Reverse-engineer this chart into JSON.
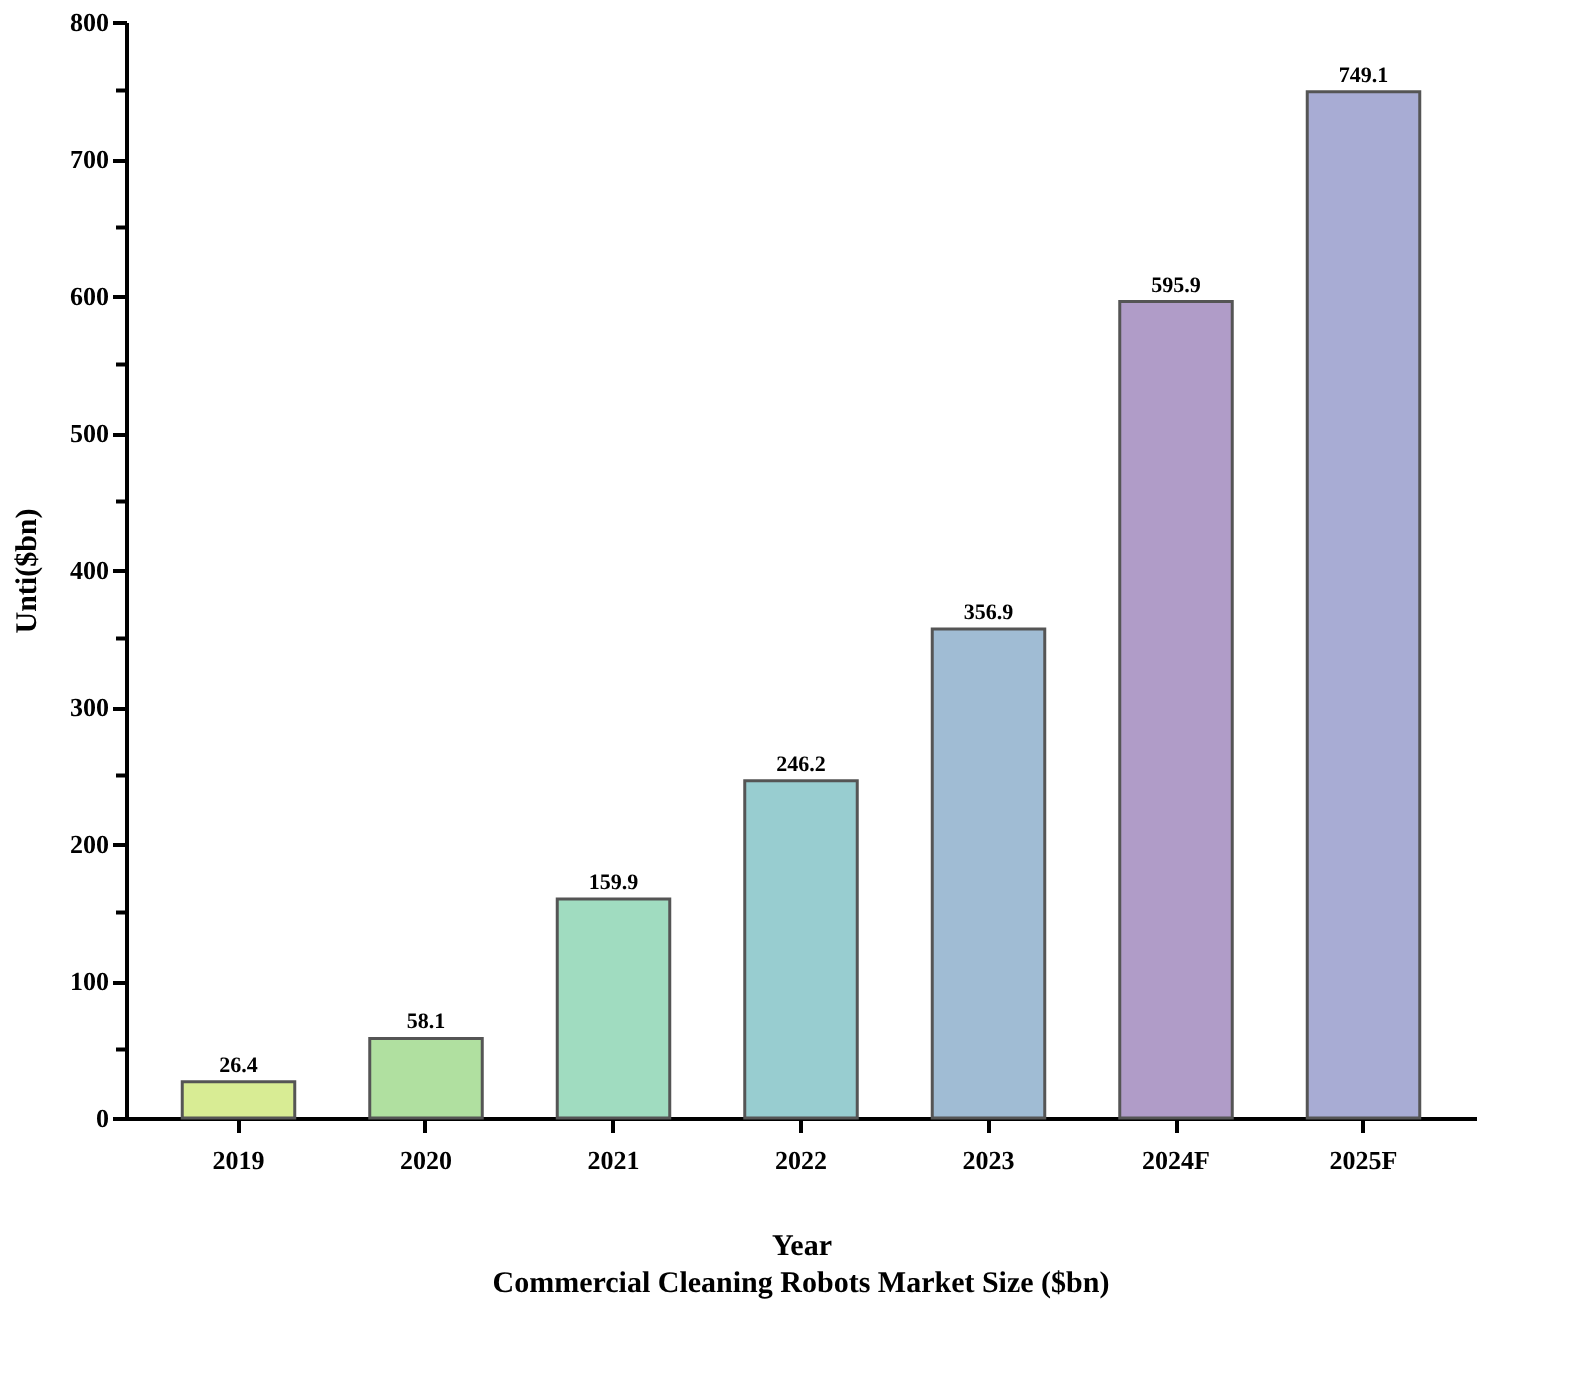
{
  "chart_data": {
    "type": "bar",
    "title": "Commercial Cleaning Robots Market Size ($bn)",
    "xlabel": "Year",
    "ylabel": "Unti($bn)",
    "categories": [
      "2019",
      "2020",
      "2021",
      "2022",
      "2023",
      "2024F",
      "2025F"
    ],
    "values": [
      26.4,
      58.1,
      159.9,
      246.2,
      356.9,
      595.9,
      749.1
    ],
    "colors": [
      "#d8ec94",
      "#b0e0a0",
      "#a0dcc0",
      "#98cdd0",
      "#a0bcd4",
      "#b09cc8",
      "#a8acd4"
    ],
    "ylim": [
      0,
      800
    ],
    "yticks": [
      0,
      {
        "value": 50,
        "label": null
      },
      100,
      {
        "value": 150,
        "label": null
      },
      200,
      {
        "value": 250,
        "label": null
      },
      300,
      {
        "value": 350,
        "label": null
      },
      400,
      {
        "value": 450,
        "label": null
      },
      500,
      {
        "value": 550,
        "label": null
      },
      600,
      {
        "value": 650,
        "label": null
      },
      700,
      {
        "value": 750,
        "label": null
      },
      800
    ],
    "data_labels": true,
    "grid": false
  }
}
